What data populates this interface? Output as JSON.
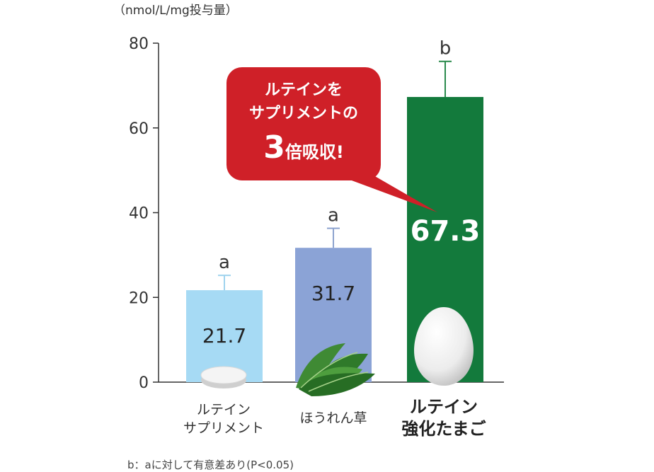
{
  "unit_label": "（nmol/L/mg投与量）",
  "callout": {
    "line1": "ルテインを",
    "line2": "サプリメントの",
    "multiplier": "3",
    "line3_rest": "倍吸収!",
    "color": "#cf2028"
  },
  "x_labels": [
    [
      "ルテイン",
      "サプリメント"
    ],
    [
      "ほうれん草"
    ],
    [
      "ルテイン",
      "強化たまご"
    ]
  ],
  "footnote": "b：aに対して有意差あり(P<0.05)",
  "chart_data": {
    "type": "bar",
    "categories": [
      "ルテイン サプリメント",
      "ほうれん草",
      "ルテイン 強化たまご"
    ],
    "values": [
      21.7,
      31.7,
      67.3
    ],
    "value_labels": [
      "21.7",
      "31.7",
      "67.3"
    ],
    "error_upper": [
      25.2,
      36.3,
      75.7
    ],
    "significance_letters": [
      "a",
      "a",
      "b"
    ],
    "colors": [
      "#a6daf4",
      "#8ba3d6",
      "#137a3c"
    ],
    "error_bar_colors": [
      "#9fd3ee",
      "#8da3cf",
      "#2a8a4c"
    ],
    "ylim": [
      0,
      80
    ],
    "yticks": [
      "0",
      "20",
      "40",
      "60",
      "80"
    ],
    "ytick_values": [
      0,
      20,
      40,
      60,
      80
    ],
    "title": "",
    "xlabel": "",
    "ylabel": "（nmol/L/mg投与量）",
    "grid": false,
    "illustrations": [
      "tablet-icon",
      "spinach-icon",
      "egg-icon"
    ]
  }
}
